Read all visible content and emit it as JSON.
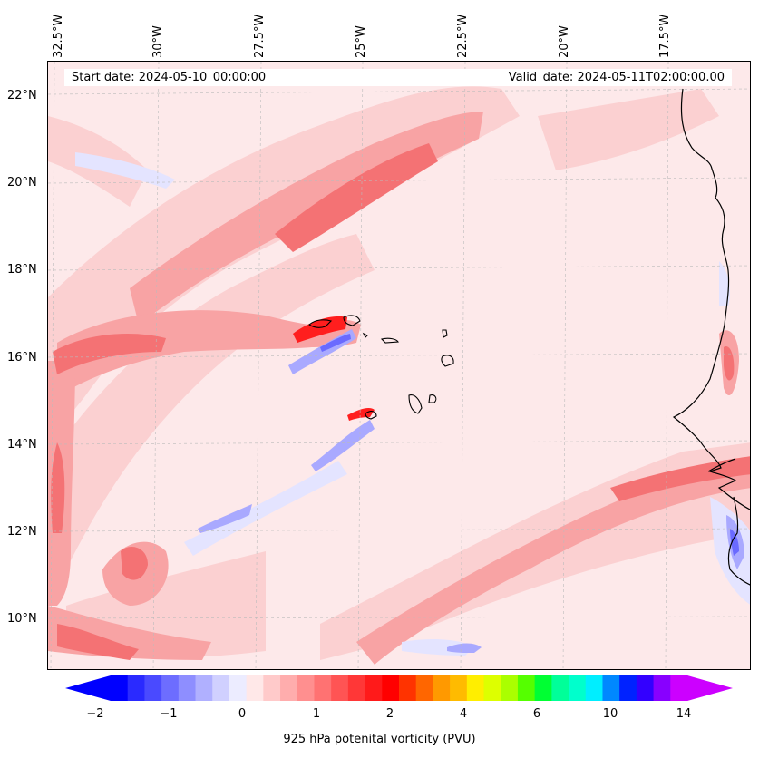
{
  "map": {
    "title_start": "Start date: 2024-05-10_00:00:00",
    "title_valid": "Valid_date: 2024-05-11T02:00:00.00",
    "lon_labels": [
      "32.5°W",
      "30°W",
      "27.5°W",
      "25°W",
      "22.5°W",
      "20°W",
      "17.5°W"
    ],
    "lat_labels": [
      "22°N",
      "20°N",
      "18°N",
      "16°N",
      "14°N",
      "12°N",
      "10°N"
    ],
    "colorbar": {
      "label": "925 hPa potenital vorticity (PVU)",
      "ticks": [
        "−2",
        "−1",
        "0",
        "1",
        "2",
        "4",
        "6",
        "10",
        "14"
      ],
      "colors": [
        "#0000ff",
        "#2a2aff",
        "#4a4aff",
        "#6d6dff",
        "#8e8eff",
        "#b0b0ff",
        "#d0d0ff",
        "#ececff",
        "#ffe8e8",
        "#ffcaca",
        "#ffadad",
        "#ff8f8f",
        "#ff7272",
        "#ff5454",
        "#ff3737",
        "#ff1a1a",
        "#ff0000",
        "#ff3300",
        "#ff6600",
        "#ff9900",
        "#ffbb00",
        "#ffee00",
        "#ddff00",
        "#aaff00",
        "#55ff00",
        "#00ff33",
        "#00ff99",
        "#00ffcc",
        "#00eeff",
        "#0088ff",
        "#0022ff",
        "#3300ff",
        "#8800ff",
        "#cc00ff"
      ],
      "extend_min_color": "#0000ff",
      "extend_max_color": "#cc00ff"
    },
    "fill": {
      "background": "#fde9ea",
      "light": "#fbd0d1",
      "medium": "#f8a3a4",
      "strong": "#f47274",
      "intense": "#ff1e1e",
      "light_blue": "#e4e4ff",
      "blue": "#a9a9ff",
      "deep_blue": "#6a6aff"
    }
  }
}
